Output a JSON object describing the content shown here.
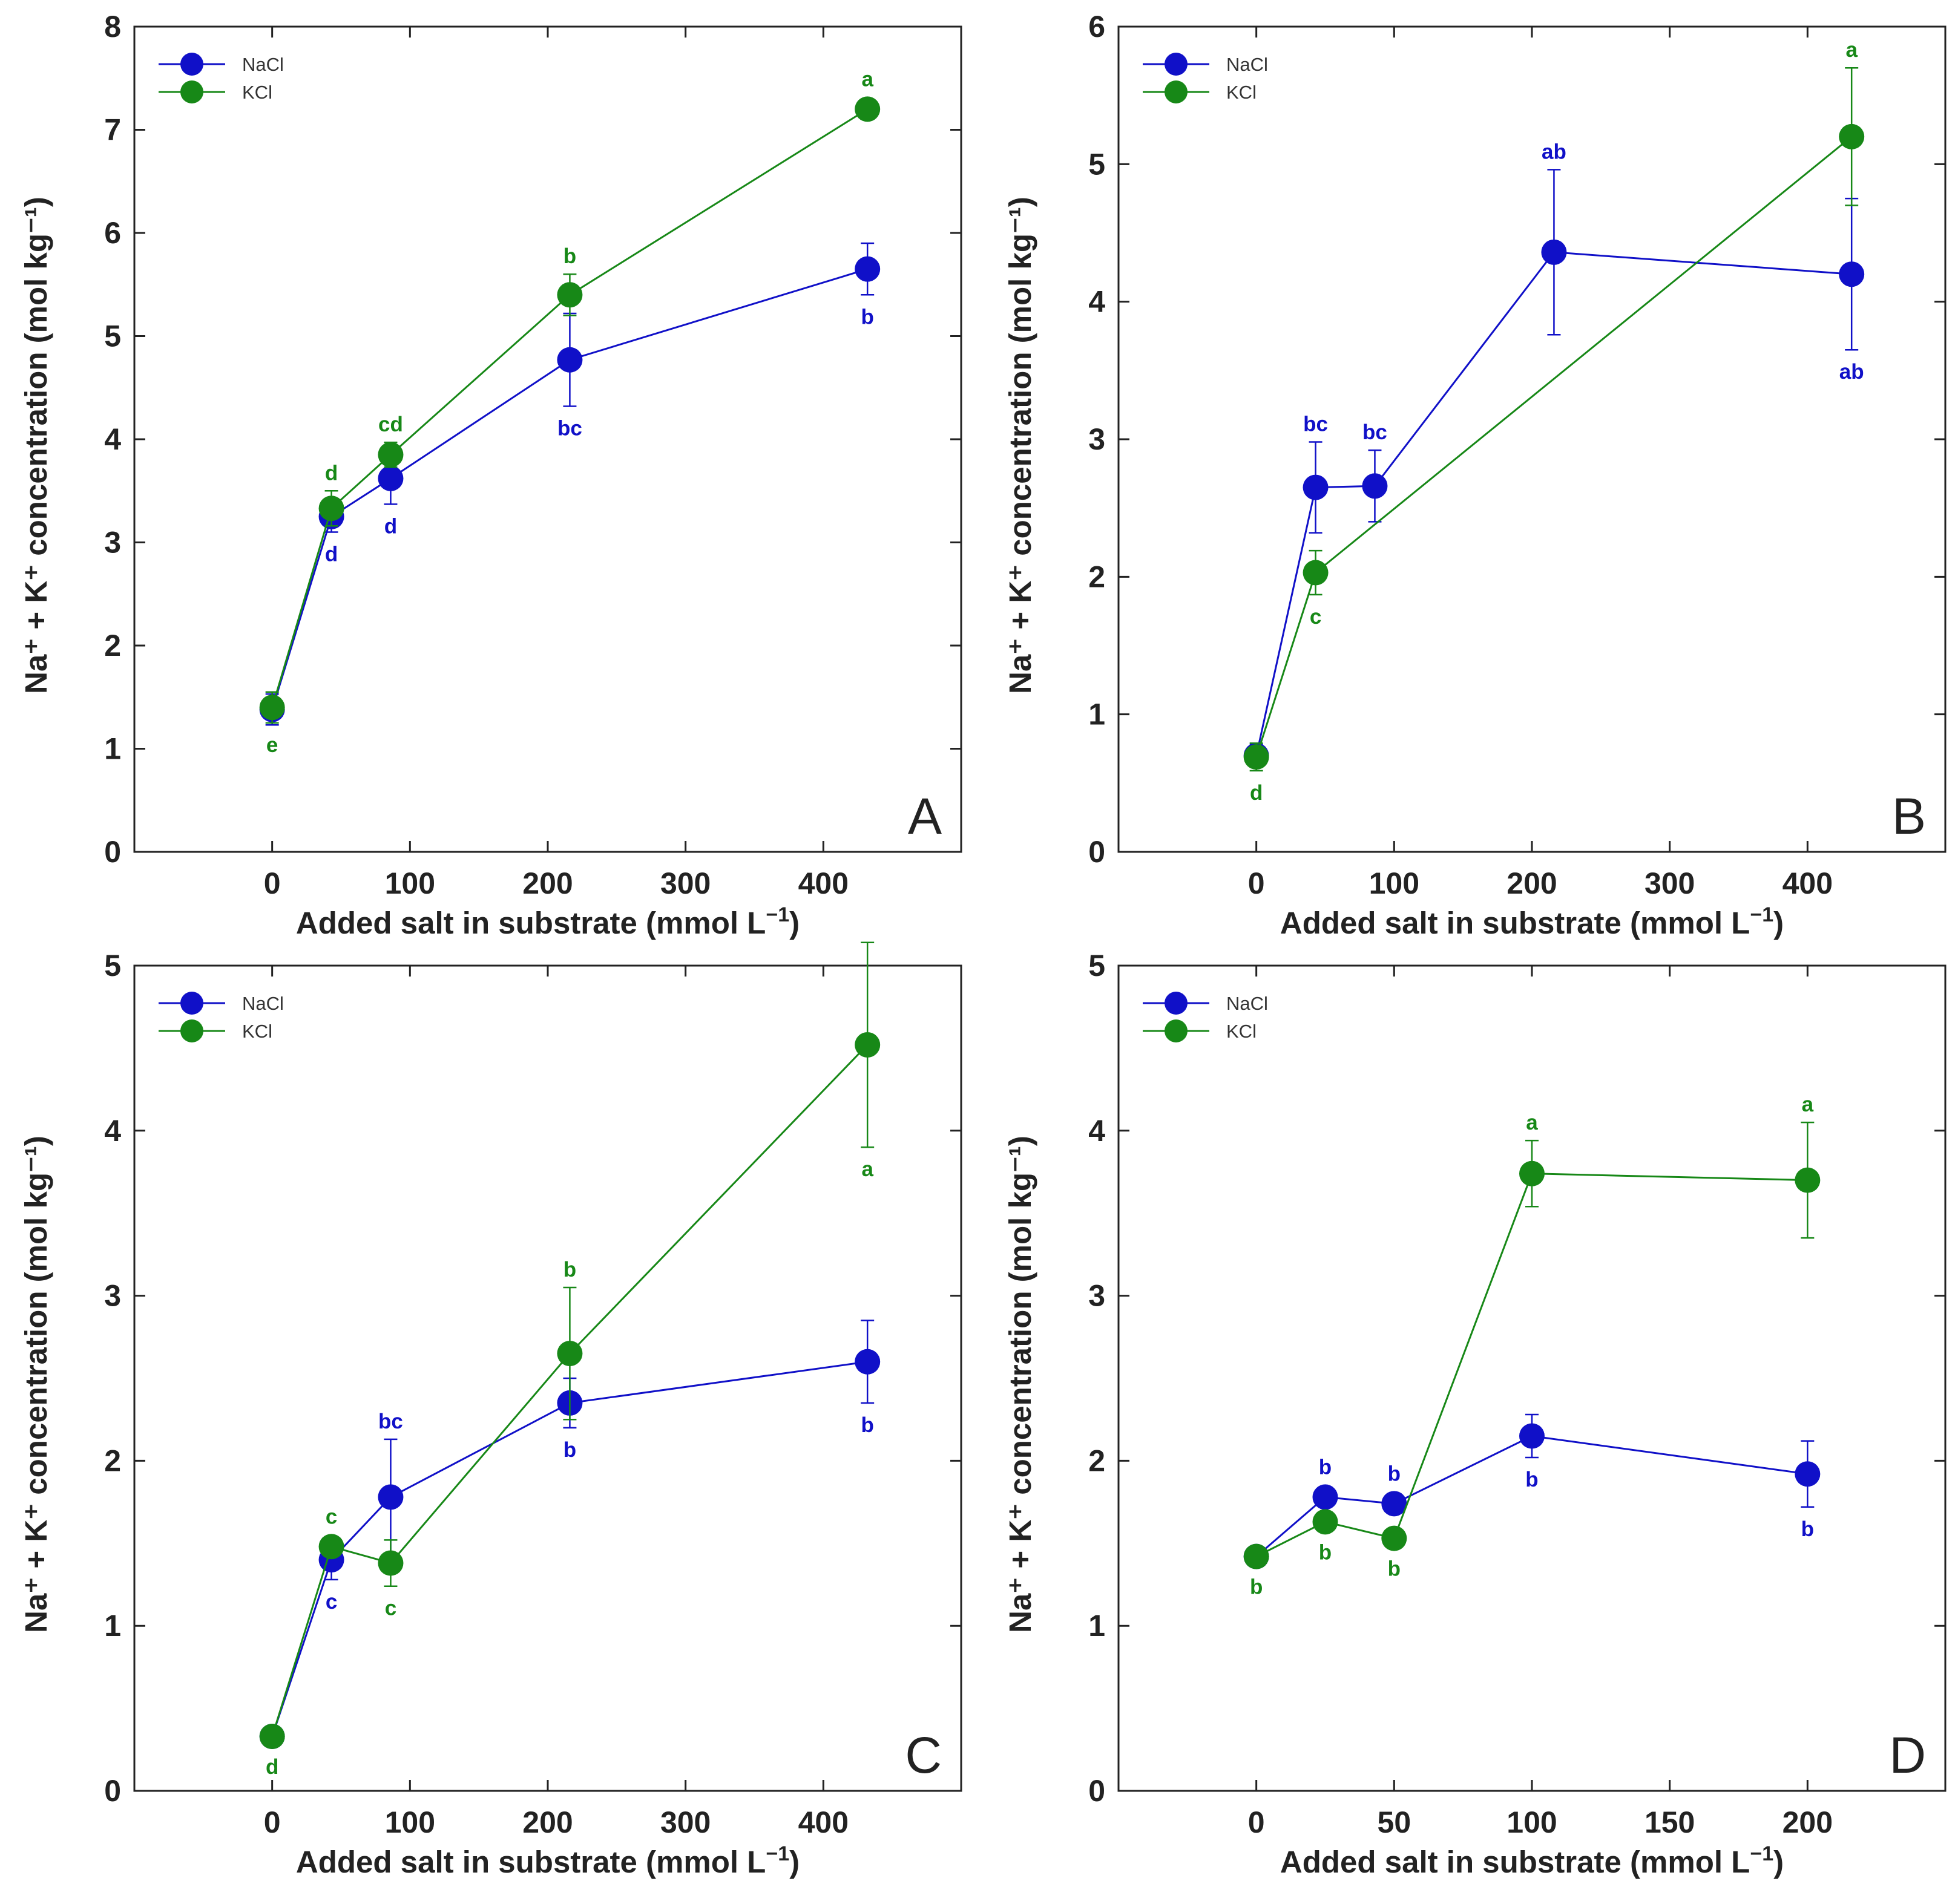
{
  "colors": {
    "nacl": "#1010c8",
    "kcl": "#178817",
    "axis": "#222222"
  },
  "legend": {
    "nacl": "NaCl",
    "kcl": "KCl"
  },
  "chart_data": [
    {
      "type": "line",
      "panel_label": "A",
      "xlabel": "Added salt in substrate (mmol L",
      "xlabel_sup": "−1",
      "xlabel_end": ")",
      "ylabel": "Na⁺ + K⁺ concentration (mol kg⁻¹)",
      "xlim": [
        -100,
        500
      ],
      "ylim": [
        0,
        8
      ],
      "xticks": [
        0,
        100,
        200,
        300,
        400
      ],
      "yticks": [
        0,
        1,
        2,
        3,
        4,
        5,
        6,
        7,
        8
      ],
      "series": [
        {
          "name": "NaCl",
          "color_key": "nacl",
          "x": [
            0,
            43,
            86,
            216,
            432
          ],
          "values": [
            1.38,
            3.25,
            3.62,
            4.77,
            5.65
          ],
          "errors": [
            0.15,
            0.15,
            0.25,
            0.45,
            0.25
          ],
          "letters": [
            "",
            "d",
            "d",
            "bc",
            "b"
          ],
          "letter_side": [
            "below",
            "below",
            "below",
            "below",
            "below"
          ]
        },
        {
          "name": "KCl",
          "color_key": "kcl",
          "x": [
            0,
            43,
            86,
            216,
            432
          ],
          "values": [
            1.4,
            3.33,
            3.85,
            5.4,
            7.2
          ],
          "errors": [
            0.15,
            0.17,
            0.12,
            0.2,
            0.05
          ],
          "letters": [
            "e",
            "d",
            "cd",
            "b",
            "a"
          ],
          "letter_side": [
            "below",
            "above",
            "above",
            "above",
            "above"
          ]
        }
      ]
    },
    {
      "type": "line",
      "panel_label": "B",
      "xlabel": "Added salt in substrate (mmol L",
      "xlabel_sup": "−1",
      "xlabel_end": ")",
      "ylabel": "Na⁺ + K⁺ concentration (mol kg⁻¹)",
      "xlim": [
        -100,
        500
      ],
      "ylim": [
        0,
        6
      ],
      "xticks": [
        0,
        100,
        200,
        300,
        400
      ],
      "yticks": [
        0,
        1,
        2,
        3,
        4,
        5,
        6
      ],
      "series": [
        {
          "name": "NaCl",
          "color_key": "nacl",
          "x": [
            0,
            43,
            86,
            216,
            432
          ],
          "values": [
            0.7,
            2.65,
            2.66,
            4.36,
            4.2
          ],
          "errors": [
            0.08,
            0.33,
            0.26,
            0.6,
            0.55
          ],
          "letters": [
            "",
            "bc",
            "bc",
            "ab",
            "ab"
          ],
          "letter_side": [
            "below",
            "above",
            "above",
            "above",
            "below"
          ]
        },
        {
          "name": "KCl",
          "color_key": "kcl",
          "x": [
            0,
            43,
            432
          ],
          "values": [
            0.69,
            2.03,
            5.2
          ],
          "errors": [
            0.1,
            0.16,
            0.5
          ],
          "letters": [
            "d",
            "c",
            "a"
          ],
          "letter_side": [
            "below",
            "below",
            "above"
          ]
        }
      ]
    },
    {
      "type": "line",
      "panel_label": "C",
      "xlabel": "Added salt in substrate (mmol L",
      "xlabel_sup": "−1",
      "xlabel_end": ")",
      "ylabel": "Na⁺ + K⁺ concentration (mol kg⁻¹)",
      "xlim": [
        -100,
        500
      ],
      "ylim": [
        0,
        5
      ],
      "xticks": [
        0,
        100,
        200,
        300,
        400
      ],
      "yticks": [
        0,
        1,
        2,
        3,
        4,
        5
      ],
      "series": [
        {
          "name": "NaCl",
          "color_key": "nacl",
          "x": [
            0,
            43,
            86,
            216,
            432
          ],
          "values": [
            0.33,
            1.4,
            1.78,
            2.35,
            2.6
          ],
          "errors": [
            0.04,
            0.12,
            0.35,
            0.15,
            0.25
          ],
          "letters": [
            "",
            "c",
            "bc",
            "b",
            "b"
          ],
          "letter_side": [
            "below",
            "below",
            "above",
            "below",
            "below"
          ]
        },
        {
          "name": "KCl",
          "color_key": "kcl",
          "x": [
            0,
            43,
            86,
            216,
            432
          ],
          "values": [
            0.33,
            1.48,
            1.38,
            2.65,
            4.52
          ],
          "errors": [
            0.04,
            0.06,
            0.14,
            0.4,
            0.62
          ],
          "letters": [
            "d",
            "c",
            "c",
            "b",
            "a"
          ],
          "letter_side": [
            "below",
            "above",
            "below",
            "above",
            "below"
          ]
        }
      ]
    },
    {
      "type": "line",
      "panel_label": "D",
      "xlabel": "Added salt in substrate (mmol L",
      "xlabel_sup": "−1",
      "xlabel_end": ")",
      "ylabel": "Na⁺ + K⁺ concentration (mol kg⁻¹)",
      "xlim": [
        -50,
        250
      ],
      "ylim": [
        0,
        5
      ],
      "xticks": [
        0,
        50,
        100,
        150,
        200
      ],
      "yticks": [
        0,
        1,
        2,
        3,
        4,
        5
      ],
      "series": [
        {
          "name": "NaCl",
          "color_key": "nacl",
          "x": [
            0,
            25,
            50,
            100,
            200
          ],
          "values": [
            1.42,
            1.78,
            1.74,
            2.15,
            1.92
          ],
          "errors": [
            0.03,
            0.04,
            0.04,
            0.13,
            0.2
          ],
          "letters": [
            "",
            "b",
            "b",
            "b",
            "b"
          ],
          "letter_side": [
            "below",
            "above",
            "above",
            "below",
            "below"
          ]
        },
        {
          "name": "KCl",
          "color_key": "kcl",
          "x": [
            0,
            25,
            50,
            100,
            200
          ],
          "values": [
            1.42,
            1.63,
            1.53,
            3.74,
            3.7
          ],
          "errors": [
            0.03,
            0.03,
            0.03,
            0.2,
            0.35
          ],
          "letters": [
            "b",
            "b",
            "b",
            "a",
            "a"
          ],
          "letter_side": [
            "below",
            "below",
            "below",
            "above",
            "above"
          ]
        }
      ]
    }
  ]
}
